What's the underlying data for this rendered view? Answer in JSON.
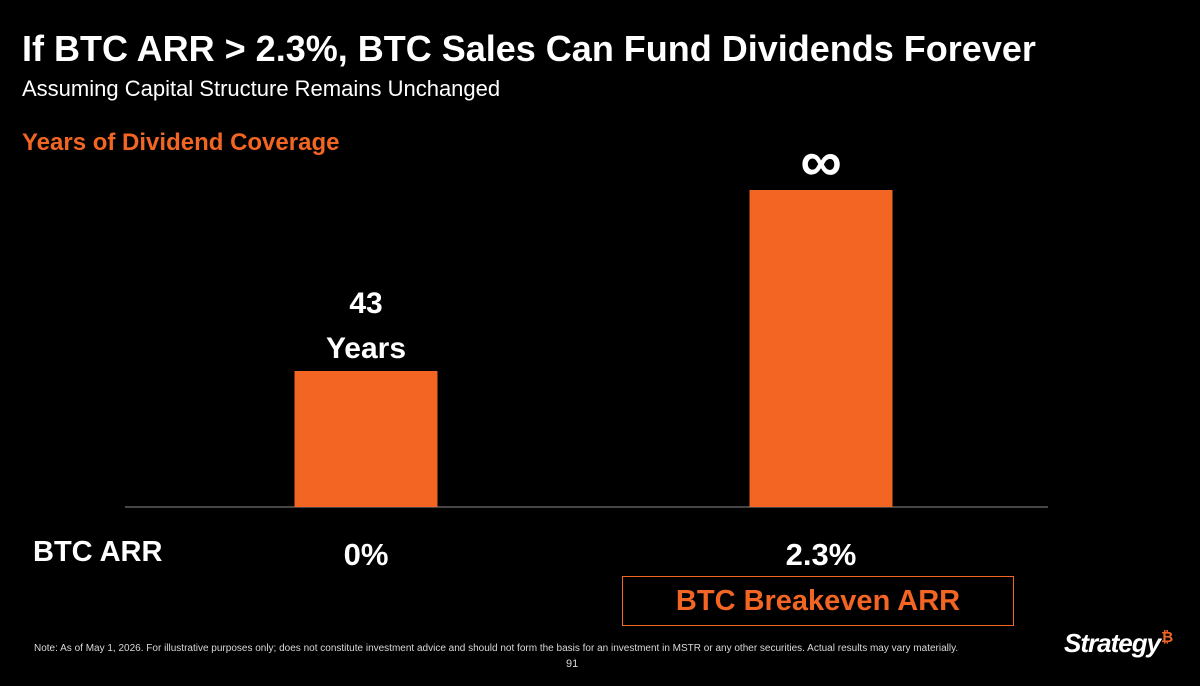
{
  "header": {
    "title": "If BTC ARR > 2.3%, BTC Sales Can Fund Dividends Forever",
    "subtitle": "Assuming Capital Structure Remains Unchanged",
    "section_label": "Years of Dividend Coverage"
  },
  "chart_data": {
    "type": "bar",
    "categories": [
      "0%",
      "2.3%"
    ],
    "values": [
      43,
      null
    ],
    "data_labels": [
      "43\nYears",
      "∞"
    ],
    "xlabel": "BTC ARR",
    "ylabel": "Years of Dividend Coverage",
    "annotations": [
      "BTC Breakeven ARR"
    ],
    "grid": false,
    "bar_color": "#f26522"
  },
  "axis": {
    "label": "BTC ARR"
  },
  "breakeven": {
    "label": "BTC Breakeven ARR"
  },
  "footer": {
    "note": "Note: As of May 1, 2026. For illustrative purposes only; does not constitute investment advice and should not form the basis for an investment in MSTR or any other securities. Actual results may vary materially.",
    "page_number": "91",
    "logo_text": "Strategy",
    "logo_mark": "₿"
  },
  "colors": {
    "accent": "#f26522",
    "background": "#000000",
    "text": "#ffffff"
  }
}
